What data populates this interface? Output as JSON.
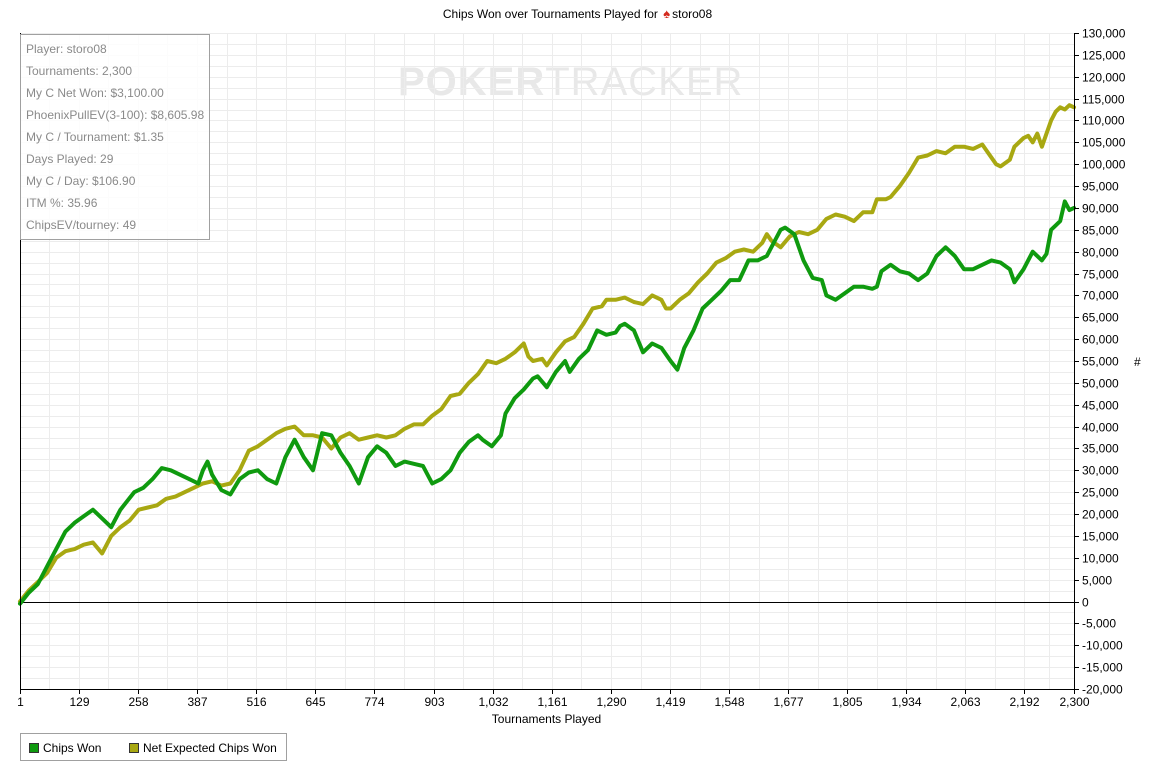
{
  "chart_data": {
    "type": "line",
    "title": "Chips Won over Tournaments Played for",
    "player_name": "storo08",
    "title_icon": "spade-icon",
    "xlabel": "Tournaments Played",
    "ylabel": "#",
    "xlim": [
      1,
      2300
    ],
    "ylim": [
      -20000,
      130000
    ],
    "x_ticks": [
      1,
      129,
      258,
      387,
      516,
      645,
      774,
      903,
      1032,
      1161,
      1290,
      1419,
      1548,
      1677,
      1805,
      1934,
      2063,
      2192,
      2300
    ],
    "x_tick_labels": [
      "1",
      "129",
      "258",
      "387",
      "516",
      "645",
      "774",
      "903",
      "1,032",
      "1,161",
      "1,290",
      "1,419",
      "1,548",
      "1,677",
      "1,805",
      "1,934",
      "2,063",
      "2,192",
      "2,300"
    ],
    "y_ticks": [
      -20000,
      -15000,
      -10000,
      -5000,
      0,
      5000,
      10000,
      15000,
      20000,
      25000,
      30000,
      35000,
      40000,
      45000,
      50000,
      55000,
      60000,
      65000,
      70000,
      75000,
      80000,
      85000,
      90000,
      95000,
      100000,
      105000,
      110000,
      115000,
      120000,
      125000,
      130000
    ],
    "y_tick_labels": [
      "-20,000",
      "-15,000",
      "-10,000",
      "-5,000",
      "0",
      "5,000",
      "10,000",
      "15,000",
      "20,000",
      "25,000",
      "30,000",
      "35,000",
      "40,000",
      "45,000",
      "50,000",
      "55,000",
      "60,000",
      "65,000",
      "70,000",
      "75,000",
      "80,000",
      "85,000",
      "90,000",
      "95,000",
      "100,000",
      "105,000",
      "110,000",
      "115,000",
      "120,000",
      "125,000",
      "130,000"
    ],
    "grid": true,
    "legend_position": "bottom-left",
    "series": [
      {
        "name": "Chips Won",
        "color": "#0f9a0f",
        "points": [
          [
            1,
            -500
          ],
          [
            20,
            2000
          ],
          [
            40,
            4000
          ],
          [
            60,
            8000
          ],
          [
            80,
            12000
          ],
          [
            100,
            16000
          ],
          [
            120,
            18000
          ],
          [
            140,
            19500
          ],
          [
            160,
            21000
          ],
          [
            180,
            19000
          ],
          [
            200,
            17000
          ],
          [
            220,
            21000
          ],
          [
            250,
            25000
          ],
          [
            270,
            26000
          ],
          [
            290,
            28000
          ],
          [
            310,
            30500
          ],
          [
            330,
            30000
          ],
          [
            350,
            29000
          ],
          [
            370,
            28000
          ],
          [
            390,
            27000
          ],
          [
            400,
            30000
          ],
          [
            410,
            32000
          ],
          [
            420,
            29000
          ],
          [
            440,
            25500
          ],
          [
            460,
            24500
          ],
          [
            480,
            28000
          ],
          [
            500,
            29500
          ],
          [
            520,
            30000
          ],
          [
            540,
            28000
          ],
          [
            560,
            27000
          ],
          [
            580,
            33000
          ],
          [
            600,
            37000
          ],
          [
            620,
            33000
          ],
          [
            640,
            30000
          ],
          [
            660,
            38500
          ],
          [
            680,
            38000
          ],
          [
            700,
            34000
          ],
          [
            720,
            31000
          ],
          [
            740,
            27000
          ],
          [
            760,
            33000
          ],
          [
            780,
            35500
          ],
          [
            800,
            34000
          ],
          [
            820,
            31000
          ],
          [
            840,
            32000
          ],
          [
            860,
            31500
          ],
          [
            880,
            31000
          ],
          [
            900,
            27000
          ],
          [
            920,
            28000
          ],
          [
            940,
            30000
          ],
          [
            960,
            34000
          ],
          [
            980,
            36500
          ],
          [
            1000,
            38000
          ],
          [
            1010,
            37000
          ],
          [
            1030,
            35500
          ],
          [
            1050,
            38000
          ],
          [
            1060,
            43000
          ],
          [
            1080,
            46500
          ],
          [
            1100,
            48500
          ],
          [
            1120,
            51000
          ],
          [
            1130,
            51500
          ],
          [
            1150,
            49000
          ],
          [
            1170,
            52500
          ],
          [
            1190,
            55000
          ],
          [
            1200,
            52500
          ],
          [
            1220,
            55500
          ],
          [
            1240,
            57500
          ],
          [
            1260,
            62000
          ],
          [
            1280,
            61000
          ],
          [
            1300,
            61500
          ],
          [
            1310,
            63000
          ],
          [
            1320,
            63500
          ],
          [
            1340,
            62000
          ],
          [
            1360,
            57000
          ],
          [
            1380,
            59000
          ],
          [
            1400,
            58000
          ],
          [
            1420,
            55000
          ],
          [
            1435,
            53000
          ],
          [
            1450,
            58000
          ],
          [
            1470,
            62000
          ],
          [
            1490,
            67000
          ],
          [
            1510,
            69000
          ],
          [
            1530,
            71000
          ],
          [
            1550,
            73500
          ],
          [
            1570,
            73500
          ],
          [
            1590,
            78000
          ],
          [
            1610,
            78000
          ],
          [
            1630,
            79000
          ],
          [
            1650,
            83000
          ],
          [
            1660,
            85000
          ],
          [
            1670,
            85500
          ],
          [
            1690,
            84000
          ],
          [
            1710,
            78000
          ],
          [
            1730,
            74000
          ],
          [
            1750,
            73500
          ],
          [
            1760,
            70000
          ],
          [
            1780,
            69000
          ],
          [
            1800,
            70500
          ],
          [
            1820,
            72000
          ],
          [
            1840,
            72000
          ],
          [
            1860,
            71500
          ],
          [
            1870,
            72000
          ],
          [
            1880,
            75500
          ],
          [
            1900,
            77000
          ],
          [
            1920,
            75500
          ],
          [
            1940,
            75000
          ],
          [
            1960,
            73500
          ],
          [
            1980,
            75000
          ],
          [
            2000,
            79000
          ],
          [
            2020,
            81000
          ],
          [
            2040,
            79000
          ],
          [
            2060,
            76000
          ],
          [
            2080,
            76000
          ],
          [
            2100,
            77000
          ],
          [
            2120,
            78000
          ],
          [
            2140,
            77500
          ],
          [
            2160,
            76000
          ],
          [
            2170,
            73000
          ],
          [
            2190,
            76000
          ],
          [
            2210,
            80000
          ],
          [
            2230,
            78000
          ],
          [
            2240,
            79500
          ],
          [
            2250,
            85000
          ],
          [
            2260,
            86000
          ],
          [
            2270,
            87000
          ],
          [
            2280,
            91500
          ],
          [
            2290,
            89500
          ],
          [
            2300,
            90000
          ]
        ]
      },
      {
        "name": "Net Expected Chips Won",
        "color": "#a8a812",
        "points": [
          [
            1,
            0
          ],
          [
            20,
            2500
          ],
          [
            40,
            4500
          ],
          [
            60,
            6500
          ],
          [
            80,
            10000
          ],
          [
            100,
            11500
          ],
          [
            120,
            12000
          ],
          [
            140,
            13000
          ],
          [
            160,
            13500
          ],
          [
            180,
            11000
          ],
          [
            200,
            15000
          ],
          [
            220,
            17000
          ],
          [
            240,
            18500
          ],
          [
            260,
            21000
          ],
          [
            280,
            21500
          ],
          [
            300,
            22000
          ],
          [
            320,
            23500
          ],
          [
            340,
            24000
          ],
          [
            360,
            25000
          ],
          [
            380,
            26000
          ],
          [
            400,
            27000
          ],
          [
            420,
            27500
          ],
          [
            440,
            26500
          ],
          [
            460,
            27000
          ],
          [
            480,
            30000
          ],
          [
            500,
            34500
          ],
          [
            520,
            35500
          ],
          [
            540,
            37000
          ],
          [
            560,
            38500
          ],
          [
            580,
            39500
          ],
          [
            600,
            40000
          ],
          [
            620,
            38000
          ],
          [
            640,
            38000
          ],
          [
            660,
            37500
          ],
          [
            680,
            35000
          ],
          [
            700,
            37500
          ],
          [
            720,
            38500
          ],
          [
            740,
            37000
          ],
          [
            760,
            37500
          ],
          [
            780,
            38000
          ],
          [
            800,
            37500
          ],
          [
            820,
            38000
          ],
          [
            840,
            39500
          ],
          [
            860,
            40500
          ],
          [
            880,
            40500
          ],
          [
            900,
            42500
          ],
          [
            920,
            44000
          ],
          [
            940,
            47000
          ],
          [
            960,
            47500
          ],
          [
            980,
            50000
          ],
          [
            1000,
            52000
          ],
          [
            1020,
            55000
          ],
          [
            1040,
            54500
          ],
          [
            1060,
            55500
          ],
          [
            1080,
            57000
          ],
          [
            1100,
            59000
          ],
          [
            1110,
            56000
          ],
          [
            1120,
            55000
          ],
          [
            1140,
            55500
          ],
          [
            1150,
            54000
          ],
          [
            1170,
            57000
          ],
          [
            1190,
            59500
          ],
          [
            1210,
            60500
          ],
          [
            1230,
            63500
          ],
          [
            1250,
            67000
          ],
          [
            1270,
            67500
          ],
          [
            1280,
            69000
          ],
          [
            1300,
            69000
          ],
          [
            1320,
            69500
          ],
          [
            1340,
            68500
          ],
          [
            1360,
            68000
          ],
          [
            1380,
            70000
          ],
          [
            1400,
            69000
          ],
          [
            1410,
            67000
          ],
          [
            1420,
            67000
          ],
          [
            1440,
            69000
          ],
          [
            1460,
            70500
          ],
          [
            1480,
            73000
          ],
          [
            1500,
            75000
          ],
          [
            1520,
            77500
          ],
          [
            1540,
            78500
          ],
          [
            1560,
            80000
          ],
          [
            1580,
            80500
          ],
          [
            1600,
            80000
          ],
          [
            1620,
            82000
          ],
          [
            1630,
            84000
          ],
          [
            1640,
            82500
          ],
          [
            1660,
            81000
          ],
          [
            1680,
            83500
          ],
          [
            1700,
            84500
          ],
          [
            1720,
            84000
          ],
          [
            1740,
            85000
          ],
          [
            1760,
            87500
          ],
          [
            1780,
            88500
          ],
          [
            1800,
            88000
          ],
          [
            1820,
            87000
          ],
          [
            1840,
            89000
          ],
          [
            1860,
            89000
          ],
          [
            1870,
            92000
          ],
          [
            1890,
            92000
          ],
          [
            1900,
            92500
          ],
          [
            1920,
            95000
          ],
          [
            1940,
            98000
          ],
          [
            1960,
            101500
          ],
          [
            1980,
            102000
          ],
          [
            2000,
            103000
          ],
          [
            2020,
            102500
          ],
          [
            2040,
            104000
          ],
          [
            2060,
            104000
          ],
          [
            2080,
            103500
          ],
          [
            2100,
            104500
          ],
          [
            2110,
            103000
          ],
          [
            2130,
            100000
          ],
          [
            2140,
            99500
          ],
          [
            2160,
            101000
          ],
          [
            2170,
            104000
          ],
          [
            2190,
            106000
          ],
          [
            2200,
            106500
          ],
          [
            2210,
            105000
          ],
          [
            2220,
            107000
          ],
          [
            2230,
            104000
          ],
          [
            2240,
            107000
          ],
          [
            2250,
            110000
          ],
          [
            2260,
            112000
          ],
          [
            2270,
            113000
          ],
          [
            2280,
            112500
          ],
          [
            2290,
            113500
          ],
          [
            2300,
            113000
          ]
        ]
      }
    ]
  },
  "info_box": [
    "Player: storo08",
    "Tournaments: 2,300",
    "My C Net Won: $3,100.00",
    "PhoenixPullEV(3-100): $8,605.98",
    "My C / Tournament: $1.35",
    "Days Played: 29",
    "My C / Day: $106.90",
    "ITM %: 35.96",
    "ChipsEV/tourney: 49"
  ],
  "watermark": {
    "part1": "POKER",
    "part2": "TRACKER"
  },
  "legend": [
    {
      "label": "Chips Won",
      "color": "#0f9a0f"
    },
    {
      "label": "Net Expected Chips Won",
      "color": "#a8a812"
    }
  ]
}
